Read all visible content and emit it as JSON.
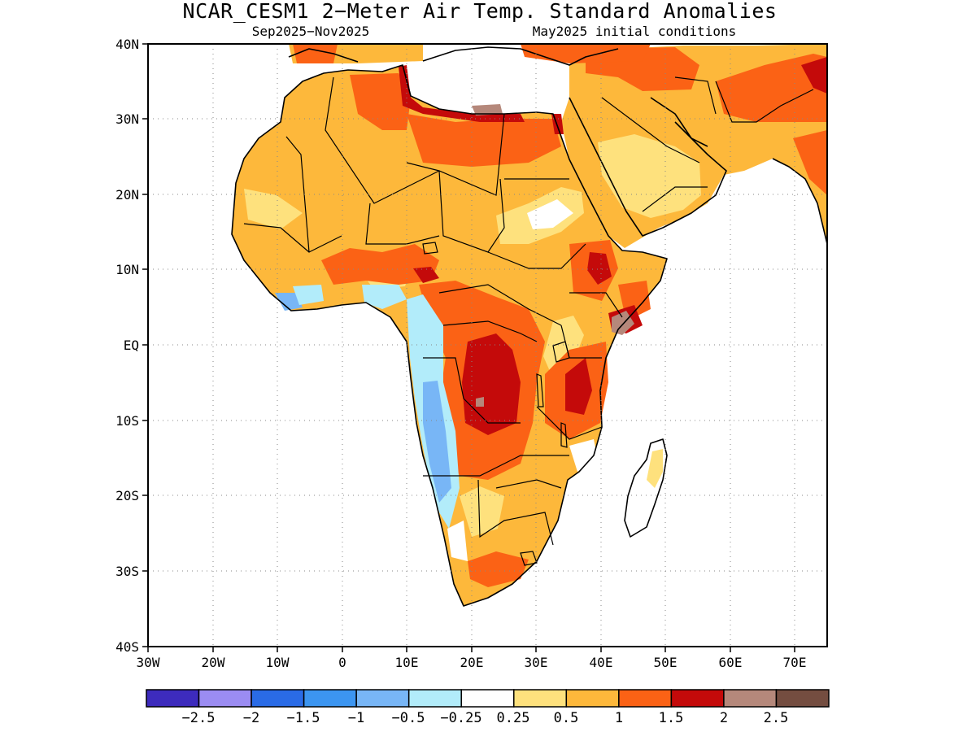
{
  "title": "NCAR_CESM1 2−Meter Air Temp. Standard Anomalies",
  "subtitle_left": "Sep2025−Nov2025",
  "subtitle_right": "May2025 initial conditions",
  "lat_labels": [
    "40N",
    "30N",
    "20N",
    "10N",
    "EQ",
    "10S",
    "20S",
    "30S",
    "40S"
  ],
  "lon_labels": [
    "30W",
    "20W",
    "10W",
    "0",
    "10E",
    "20E",
    "30E",
    "40E",
    "50E",
    "60E",
    "70E"
  ],
  "colorbar": {
    "colors": [
      "#3d2bbd",
      "#9b8cf2",
      "#2a6be6",
      "#3c95f0",
      "#78b6f6",
      "#b2ecfa",
      "#ffffff",
      "#fee17d",
      "#fdb83b",
      "#fb6215",
      "#c40a0a",
      "#b5887b",
      "#744d40"
    ],
    "labels": [
      "−2.5",
      "−2",
      "−1.5",
      "−1",
      "−0.5",
      "−0.25",
      "0.25",
      "0.5",
      "1",
      "1.5",
      "2",
      "2.5"
    ]
  },
  "map_data": {
    "domain": {
      "lon_min": -30,
      "lon_max": 75,
      "lat_min": -40,
      "lat_max": 40
    },
    "variable": "2-meter air temperature standard anomaly",
    "period": "Sep2025-Nov2025",
    "initial_conditions": "May2025",
    "grid_lines": true
  }
}
